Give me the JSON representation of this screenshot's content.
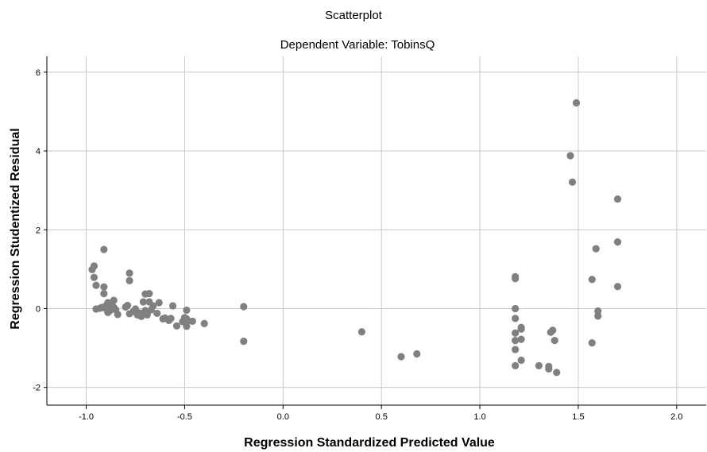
{
  "chart_data": {
    "type": "scatter",
    "title": "Scatterplot",
    "subtitle": "Dependent Variable: TobinsQ",
    "xlabel": "Regression Standardized Predicted Value",
    "ylabel": "Regression Studentized Residual",
    "xlim": [
      -1.2,
      2.15
    ],
    "ylim": [
      -2.45,
      6.4
    ],
    "xticks": [
      -1.0,
      -0.5,
      0.0,
      0.5,
      1.0,
      1.5,
      2.0
    ],
    "xtick_labels": [
      "-1.0",
      "-0.5",
      "0.0",
      "0.5",
      "1.0",
      "1.5",
      "2.0"
    ],
    "yticks": [
      -2,
      0,
      2,
      4,
      6
    ],
    "ytick_labels": [
      "-2",
      "0",
      "2",
      "4",
      "6"
    ],
    "grid": true,
    "marker_color": "#808080",
    "points": [
      {
        "x": -0.97,
        "y": 0.99
      },
      {
        "x": -0.96,
        "y": 1.08
      },
      {
        "x": -0.96,
        "y": 0.79
      },
      {
        "x": -0.95,
        "y": 0.59
      },
      {
        "x": -0.95,
        "y": -0.01
      },
      {
        "x": -0.93,
        "y": 0.01
      },
      {
        "x": -0.92,
        "y": 0.03
      },
      {
        "x": -0.91,
        "y": 1.5
      },
      {
        "x": -0.91,
        "y": 0.55
      },
      {
        "x": -0.91,
        "y": 0.38
      },
      {
        "x": -0.9,
        "y": 0.07
      },
      {
        "x": -0.9,
        "y": 0.0
      },
      {
        "x": -0.89,
        "y": -0.1
      },
      {
        "x": -0.89,
        "y": 0.15
      },
      {
        "x": -0.88,
        "y": -0.05
      },
      {
        "x": -0.87,
        "y": 0.11
      },
      {
        "x": -0.86,
        "y": 0.21
      },
      {
        "x": -0.86,
        "y": 0.03
      },
      {
        "x": -0.85,
        "y": -0.03
      },
      {
        "x": -0.84,
        "y": -0.15
      },
      {
        "x": -0.8,
        "y": 0.04
      },
      {
        "x": -0.79,
        "y": 0.08
      },
      {
        "x": -0.78,
        "y": -0.13
      },
      {
        "x": -0.78,
        "y": 0.9
      },
      {
        "x": -0.78,
        "y": 0.71
      },
      {
        "x": -0.76,
        "y": -0.07
      },
      {
        "x": -0.75,
        "y": -0.01
      },
      {
        "x": -0.74,
        "y": -0.16
      },
      {
        "x": -0.73,
        "y": -0.11
      },
      {
        "x": -0.72,
        "y": -0.2
      },
      {
        "x": -0.71,
        "y": 0.17
      },
      {
        "x": -0.7,
        "y": 0.37
      },
      {
        "x": -0.7,
        "y": -0.05
      },
      {
        "x": -0.69,
        "y": -0.16
      },
      {
        "x": -0.68,
        "y": 0.38
      },
      {
        "x": -0.68,
        "y": 0.17
      },
      {
        "x": -0.67,
        "y": -0.03
      },
      {
        "x": -0.66,
        "y": 0.07
      },
      {
        "x": -0.64,
        "y": -0.12
      },
      {
        "x": -0.63,
        "y": 0.15
      },
      {
        "x": -0.61,
        "y": -0.26
      },
      {
        "x": -0.6,
        "y": -0.24
      },
      {
        "x": -0.58,
        "y": -0.3
      },
      {
        "x": -0.57,
        "y": -0.25
      },
      {
        "x": -0.56,
        "y": 0.07
      },
      {
        "x": -0.54,
        "y": -0.44
      },
      {
        "x": -0.51,
        "y": -0.33
      },
      {
        "x": -0.5,
        "y": -0.23
      },
      {
        "x": -0.49,
        "y": -0.35
      },
      {
        "x": -0.49,
        "y": -0.45
      },
      {
        "x": -0.49,
        "y": -0.04
      },
      {
        "x": -0.49,
        "y": -0.26
      },
      {
        "x": -0.46,
        "y": -0.32
      },
      {
        "x": -0.4,
        "y": -0.38
      },
      {
        "x": -0.2,
        "y": 0.05
      },
      {
        "x": -0.2,
        "y": -0.83
      },
      {
        "x": 0.4,
        "y": -0.59
      },
      {
        "x": 0.6,
        "y": -1.22
      },
      {
        "x": 0.68,
        "y": -1.15
      },
      {
        "x": 1.18,
        "y": 0.81
      },
      {
        "x": 1.18,
        "y": 0.76
      },
      {
        "x": 1.18,
        "y": 0.0
      },
      {
        "x": 1.18,
        "y": -0.25
      },
      {
        "x": 1.18,
        "y": -0.62
      },
      {
        "x": 1.18,
        "y": -0.81
      },
      {
        "x": 1.18,
        "y": -1.04
      },
      {
        "x": 1.18,
        "y": -1.45
      },
      {
        "x": 1.21,
        "y": -0.48
      },
      {
        "x": 1.21,
        "y": -0.52
      },
      {
        "x": 1.21,
        "y": -0.78
      },
      {
        "x": 1.21,
        "y": -1.31
      },
      {
        "x": 1.3,
        "y": -1.45
      },
      {
        "x": 1.35,
        "y": -1.47
      },
      {
        "x": 1.35,
        "y": -1.53
      },
      {
        "x": 1.36,
        "y": -0.6
      },
      {
        "x": 1.37,
        "y": -0.55
      },
      {
        "x": 1.38,
        "y": -0.81
      },
      {
        "x": 1.39,
        "y": -1.62
      },
      {
        "x": 1.46,
        "y": 3.88
      },
      {
        "x": 1.47,
        "y": 3.21
      },
      {
        "x": 1.49,
        "y": 5.22
      },
      {
        "x": 1.57,
        "y": 0.74
      },
      {
        "x": 1.57,
        "y": -0.87
      },
      {
        "x": 1.59,
        "y": 1.52
      },
      {
        "x": 1.6,
        "y": -0.06
      },
      {
        "x": 1.6,
        "y": -0.19
      },
      {
        "x": 1.7,
        "y": 2.78
      },
      {
        "x": 1.7,
        "y": 1.69
      },
      {
        "x": 1.7,
        "y": 0.56
      }
    ]
  }
}
